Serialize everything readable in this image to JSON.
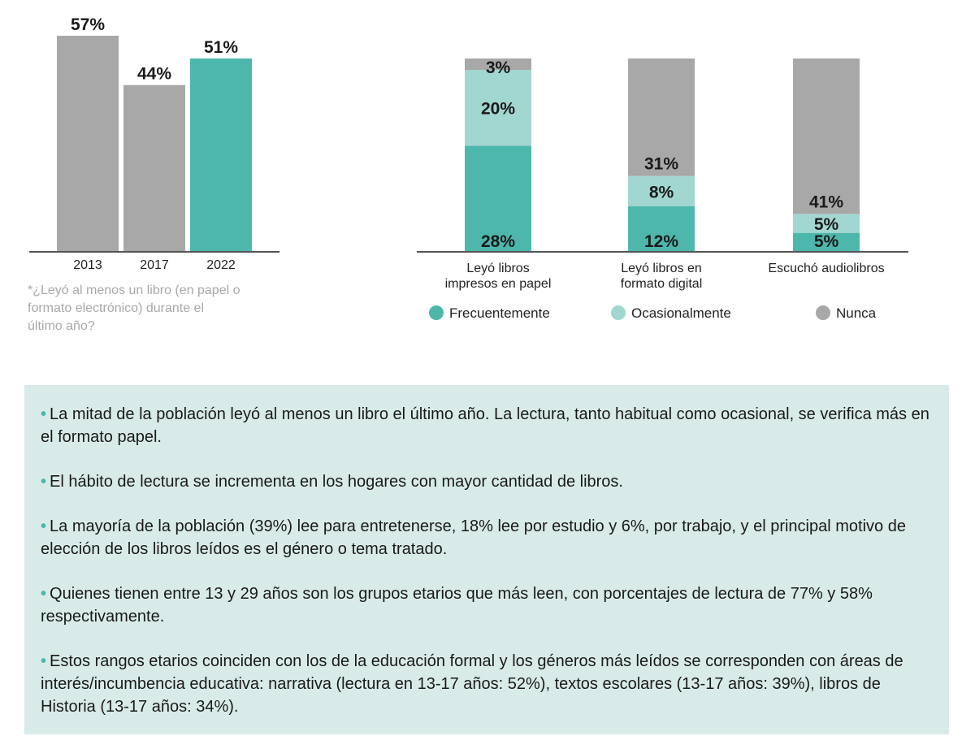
{
  "chart_data": [
    {
      "type": "bar",
      "categories": [
        "2013",
        "2017",
        "2022"
      ],
      "values": [
        57,
        44,
        51
      ],
      "value_labels": [
        "57%",
        "44%",
        "51%"
      ],
      "highlight_category": "2022",
      "colors": {
        "default": "#a8a8a8",
        "highlight": "#4db7ac"
      },
      "note": "*¿Leyó al menos un libro (en papel o formato electrónico) durante el último año?",
      "note_lines": [
        "*¿Leyó al menos un libro (en papel o",
        "formato electrónico) durante el",
        "último año?"
      ],
      "ylim": [
        0,
        57
      ],
      "grid": false
    },
    {
      "type": "bar",
      "stacked": true,
      "categories": [
        "Leyó libros impresos en papel",
        "Leyó libros en formato digital",
        "Escuchó audiolibros"
      ],
      "category_lines": [
        [
          "Leyó libros",
          "impresos en papel"
        ],
        [
          "Leyó libros en",
          "formato digital"
        ],
        [
          "Escuchó audiolibros"
        ]
      ],
      "series": [
        {
          "name": "Frecuentemente",
          "color": "#4db7ac",
          "values": [
            28,
            12,
            5
          ],
          "labels": [
            "28%",
            "12%",
            "5%"
          ]
        },
        {
          "name": "Ocasionalmente",
          "color": "#a2d6d0",
          "values": [
            20,
            8,
            5
          ],
          "labels": [
            "20%",
            "8%",
            "5%"
          ]
        },
        {
          "name": "Nunca",
          "color": "#a8a8a8",
          "values": [
            3,
            31,
            41
          ],
          "labels": [
            "3%",
            "31%",
            "41%"
          ]
        }
      ],
      "ylim": [
        0,
        51
      ],
      "legend": "bottom",
      "grid": false
    }
  ],
  "facts": [
    "La mitad de la población leyó al menos un libro el último año. La lectura, tanto habitual como ocasional, se verifica más en el formato papel.",
    "El hábito de lectura se incrementa en los hogares con mayor cantidad de libros.",
    "La mayoría de la población (39%) lee para entretenerse, 18% lee por estudio y 6%, por trabajo, y el principal motivo de elección de los libros leídos es el género o tema tratado.",
    "Quienes tienen entre 13 y 29 años son los grupos etarios que más leen, con porcentajes de lectura de 77% y 58% respectivamente.",
    "Estos rangos etarios coinciden con los de la educación formal y los géneros más leídos se corresponden con áreas de interés/incumbencia educativa: narrativa (lectura en 13-17 años: 52%), textos escolares (13-17 años: 39%), libros de Historia (13-17 años: 34%)."
  ]
}
